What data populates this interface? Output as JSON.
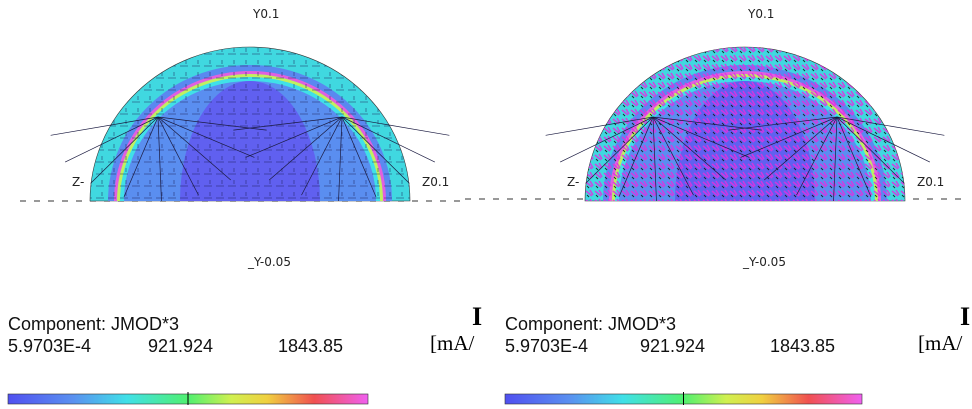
{
  "panels": [
    {
      "axis_labels": {
        "top": "Y0.1",
        "left": "Z-",
        "right": "Z0.1",
        "bottom": "_Y-0.05"
      },
      "legend": {
        "title": "Component: JMOD*3",
        "min": "5.9703E-4",
        "mid": "921.924",
        "max": "1843.85"
      },
      "unit_symbol": "I",
      "unit": "[mA/"
    },
    {
      "axis_labels": {
        "top": "Y0.1",
        "left": "Z-",
        "right": "Z0.1",
        "bottom": "_Y-0.05"
      },
      "legend": {
        "title": "Component: JMOD*3",
        "min": "5.9703E-4",
        "mid": "921.924",
        "max": "1843.85"
      },
      "unit_symbol": "I",
      "unit": "[mA/"
    }
  ]
}
